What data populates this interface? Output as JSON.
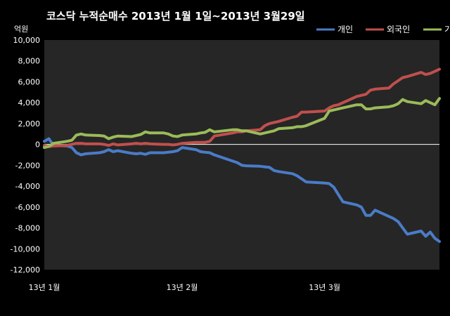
{
  "chart_data": {
    "type": "line",
    "title": "코스닥 누적순매수 2013년 1월 1일~2013년 3월29일",
    "ylabel": "억원",
    "xlabel": "",
    "ylim": [
      -12000,
      10000
    ],
    "x_range": [
      "2013-01-02",
      "2013-03-29"
    ],
    "yticks": [
      10000,
      8000,
      6000,
      4000,
      2000,
      0,
      -2000,
      -4000,
      -6000,
      -8000,
      -10000,
      -12000
    ],
    "ytick_labels": [
      "10,000",
      "8,000",
      "6,000",
      "4,000",
      "2,000",
      "0",
      "-2,000",
      "-4,000",
      "-6,000",
      "-8,000",
      "-10,000",
      "-12,000"
    ],
    "xticks": [
      {
        "date": "2013-01-02",
        "label": "13년 1월"
      },
      {
        "date": "2013-02-01",
        "label": "13년 2월"
      },
      {
        "date": "2013-03-04",
        "label": "13년 3월"
      }
    ],
    "grid": false,
    "legend_position": "top-right",
    "background": "#262626",
    "series": [
      {
        "name": "개인",
        "color": "#4a7cc7",
        "points": [
          [
            "2013-01-02",
            300
          ],
          [
            "2013-01-03",
            550
          ],
          [
            "2013-01-04",
            -100
          ],
          [
            "2013-01-07",
            -150
          ],
          [
            "2013-01-08",
            -300
          ],
          [
            "2013-01-09",
            -800
          ],
          [
            "2013-01-10",
            -1000
          ],
          [
            "2013-01-11",
            -900
          ],
          [
            "2013-01-14",
            -800
          ],
          [
            "2013-01-15",
            -700
          ],
          [
            "2013-01-16",
            -500
          ],
          [
            "2013-01-17",
            -700
          ],
          [
            "2013-01-18",
            -600
          ],
          [
            "2013-01-21",
            -850
          ],
          [
            "2013-01-22",
            -900
          ],
          [
            "2013-01-23",
            -850
          ],
          [
            "2013-01-24",
            -950
          ],
          [
            "2013-01-25",
            -800
          ],
          [
            "2013-01-28",
            -800
          ],
          [
            "2013-01-29",
            -750
          ],
          [
            "2013-01-30",
            -700
          ],
          [
            "2013-01-31",
            -600
          ],
          [
            "2013-02-01",
            -300
          ],
          [
            "2013-02-04",
            -500
          ],
          [
            "2013-02-05",
            -700
          ],
          [
            "2013-02-06",
            -750
          ],
          [
            "2013-02-07",
            -800
          ],
          [
            "2013-02-08",
            -1000
          ],
          [
            "2013-02-12",
            -1600
          ],
          [
            "2013-02-13",
            -1750
          ],
          [
            "2013-02-14",
            -2000
          ],
          [
            "2013-02-15",
            -2050
          ],
          [
            "2013-02-18",
            -2100
          ],
          [
            "2013-02-19",
            -2150
          ],
          [
            "2013-02-20",
            -2200
          ],
          [
            "2013-02-21",
            -2500
          ],
          [
            "2013-02-22",
            -2600
          ],
          [
            "2013-02-25",
            -2800
          ],
          [
            "2013-02-26",
            -3000
          ],
          [
            "2013-02-27",
            -3300
          ],
          [
            "2013-02-28",
            -3600
          ],
          [
            "2013-03-04",
            -3700
          ],
          [
            "2013-03-05",
            -3750
          ],
          [
            "2013-03-06",
            -4100
          ],
          [
            "2013-03-07",
            -4800
          ],
          [
            "2013-03-08",
            -5500
          ],
          [
            "2013-03-11",
            -5800
          ],
          [
            "2013-03-12",
            -6000
          ],
          [
            "2013-03-13",
            -6800
          ],
          [
            "2013-03-14",
            -6800
          ],
          [
            "2013-03-15",
            -6300
          ],
          [
            "2013-03-18",
            -6900
          ],
          [
            "2013-03-19",
            -7100
          ],
          [
            "2013-03-20",
            -7400
          ],
          [
            "2013-03-21",
            -8000
          ],
          [
            "2013-03-22",
            -8600
          ],
          [
            "2013-03-25",
            -8300
          ],
          [
            "2013-03-26",
            -8800
          ],
          [
            "2013-03-27",
            -8400
          ],
          [
            "2013-03-28",
            -9000
          ],
          [
            "2013-03-29",
            -9300
          ]
        ]
      },
      {
        "name": "외국인",
        "color": "#c0504d",
        "points": [
          [
            "2013-01-02",
            -100
          ],
          [
            "2013-01-03",
            -200
          ],
          [
            "2013-01-04",
            -150
          ],
          [
            "2013-01-07",
            -100
          ],
          [
            "2013-01-08",
            0
          ],
          [
            "2013-01-09",
            100
          ],
          [
            "2013-01-10",
            100
          ],
          [
            "2013-01-11",
            50
          ],
          [
            "2013-01-14",
            50
          ],
          [
            "2013-01-15",
            0
          ],
          [
            "2013-01-16",
            -100
          ],
          [
            "2013-01-17",
            50
          ],
          [
            "2013-01-18",
            -50
          ],
          [
            "2013-01-21",
            50
          ],
          [
            "2013-01-22",
            100
          ],
          [
            "2013-01-23",
            50
          ],
          [
            "2013-01-24",
            100
          ],
          [
            "2013-01-25",
            50
          ],
          [
            "2013-01-28",
            0
          ],
          [
            "2013-01-29",
            0
          ],
          [
            "2013-01-30",
            -50
          ],
          [
            "2013-01-31",
            0
          ],
          [
            "2013-02-01",
            100
          ],
          [
            "2013-02-04",
            200
          ],
          [
            "2013-02-05",
            200
          ],
          [
            "2013-02-06",
            200
          ],
          [
            "2013-02-07",
            300
          ],
          [
            "2013-02-08",
            800
          ],
          [
            "2013-02-12",
            1100
          ],
          [
            "2013-02-13",
            1200
          ],
          [
            "2013-02-14",
            1200
          ],
          [
            "2013-02-15",
            1300
          ],
          [
            "2013-02-18",
            1400
          ],
          [
            "2013-02-19",
            1800
          ],
          [
            "2013-02-20",
            2000
          ],
          [
            "2013-02-21",
            2100
          ],
          [
            "2013-02-22",
            2200
          ],
          [
            "2013-02-25",
            2600
          ],
          [
            "2013-02-26",
            2700
          ],
          [
            "2013-02-27",
            3100
          ],
          [
            "2013-02-28",
            3100
          ],
          [
            "2013-03-04",
            3200
          ],
          [
            "2013-03-05",
            3500
          ],
          [
            "2013-03-06",
            3700
          ],
          [
            "2013-03-07",
            3800
          ],
          [
            "2013-03-08",
            4000
          ],
          [
            "2013-03-11",
            4600
          ],
          [
            "2013-03-12",
            4700
          ],
          [
            "2013-03-13",
            4800
          ],
          [
            "2013-03-14",
            5200
          ],
          [
            "2013-03-15",
            5300
          ],
          [
            "2013-03-18",
            5400
          ],
          [
            "2013-03-19",
            5800
          ],
          [
            "2013-03-20",
            6100
          ],
          [
            "2013-03-21",
            6400
          ],
          [
            "2013-03-22",
            6500
          ],
          [
            "2013-03-25",
            6900
          ],
          [
            "2013-03-26",
            6700
          ],
          [
            "2013-03-27",
            6800
          ],
          [
            "2013-03-28",
            7000
          ],
          [
            "2013-03-29",
            7200
          ]
        ]
      },
      {
        "name": "기관",
        "color": "#9bbb59",
        "points": [
          [
            "2013-01-02",
            -300
          ],
          [
            "2013-01-03",
            -200
          ],
          [
            "2013-01-04",
            100
          ],
          [
            "2013-01-07",
            300
          ],
          [
            "2013-01-08",
            400
          ],
          [
            "2013-01-09",
            900
          ],
          [
            "2013-01-10",
            1000
          ],
          [
            "2013-01-11",
            900
          ],
          [
            "2013-01-14",
            850
          ],
          [
            "2013-01-15",
            800
          ],
          [
            "2013-01-16",
            550
          ],
          [
            "2013-01-17",
            700
          ],
          [
            "2013-01-18",
            800
          ],
          [
            "2013-01-21",
            750
          ],
          [
            "2013-01-22",
            850
          ],
          [
            "2013-01-23",
            950
          ],
          [
            "2013-01-24",
            1200
          ],
          [
            "2013-01-25",
            1100
          ],
          [
            "2013-01-28",
            1100
          ],
          [
            "2013-01-29",
            1000
          ],
          [
            "2013-01-30",
            800
          ],
          [
            "2013-01-31",
            750
          ],
          [
            "2013-02-01",
            900
          ],
          [
            "2013-02-04",
            1000
          ],
          [
            "2013-02-05",
            1100
          ],
          [
            "2013-02-06",
            1150
          ],
          [
            "2013-02-07",
            1400
          ],
          [
            "2013-02-08",
            1200
          ],
          [
            "2013-02-12",
            1400
          ],
          [
            "2013-02-13",
            1400
          ],
          [
            "2013-02-14",
            1300
          ],
          [
            "2013-02-15",
            1300
          ],
          [
            "2013-02-18",
            1000
          ],
          [
            "2013-02-19",
            1100
          ],
          [
            "2013-02-20",
            1200
          ],
          [
            "2013-02-21",
            1300
          ],
          [
            "2013-02-22",
            1500
          ],
          [
            "2013-02-25",
            1600
          ],
          [
            "2013-02-26",
            1700
          ],
          [
            "2013-02-27",
            1700
          ],
          [
            "2013-02-28",
            1800
          ],
          [
            "2013-03-04",
            2500
          ],
          [
            "2013-03-05",
            3200
          ],
          [
            "2013-03-06",
            3300
          ],
          [
            "2013-03-07",
            3400
          ],
          [
            "2013-03-08",
            3500
          ],
          [
            "2013-03-11",
            3800
          ],
          [
            "2013-03-12",
            3800
          ],
          [
            "2013-03-13",
            3400
          ],
          [
            "2013-03-14",
            3400
          ],
          [
            "2013-03-15",
            3500
          ],
          [
            "2013-03-18",
            3600
          ],
          [
            "2013-03-19",
            3700
          ],
          [
            "2013-03-20",
            3900
          ],
          [
            "2013-03-21",
            4300
          ],
          [
            "2013-03-22",
            4100
          ],
          [
            "2013-03-25",
            3900
          ],
          [
            "2013-03-26",
            4200
          ],
          [
            "2013-03-27",
            4000
          ],
          [
            "2013-03-28",
            3800
          ],
          [
            "2013-03-29",
            4400
          ]
        ]
      }
    ]
  }
}
